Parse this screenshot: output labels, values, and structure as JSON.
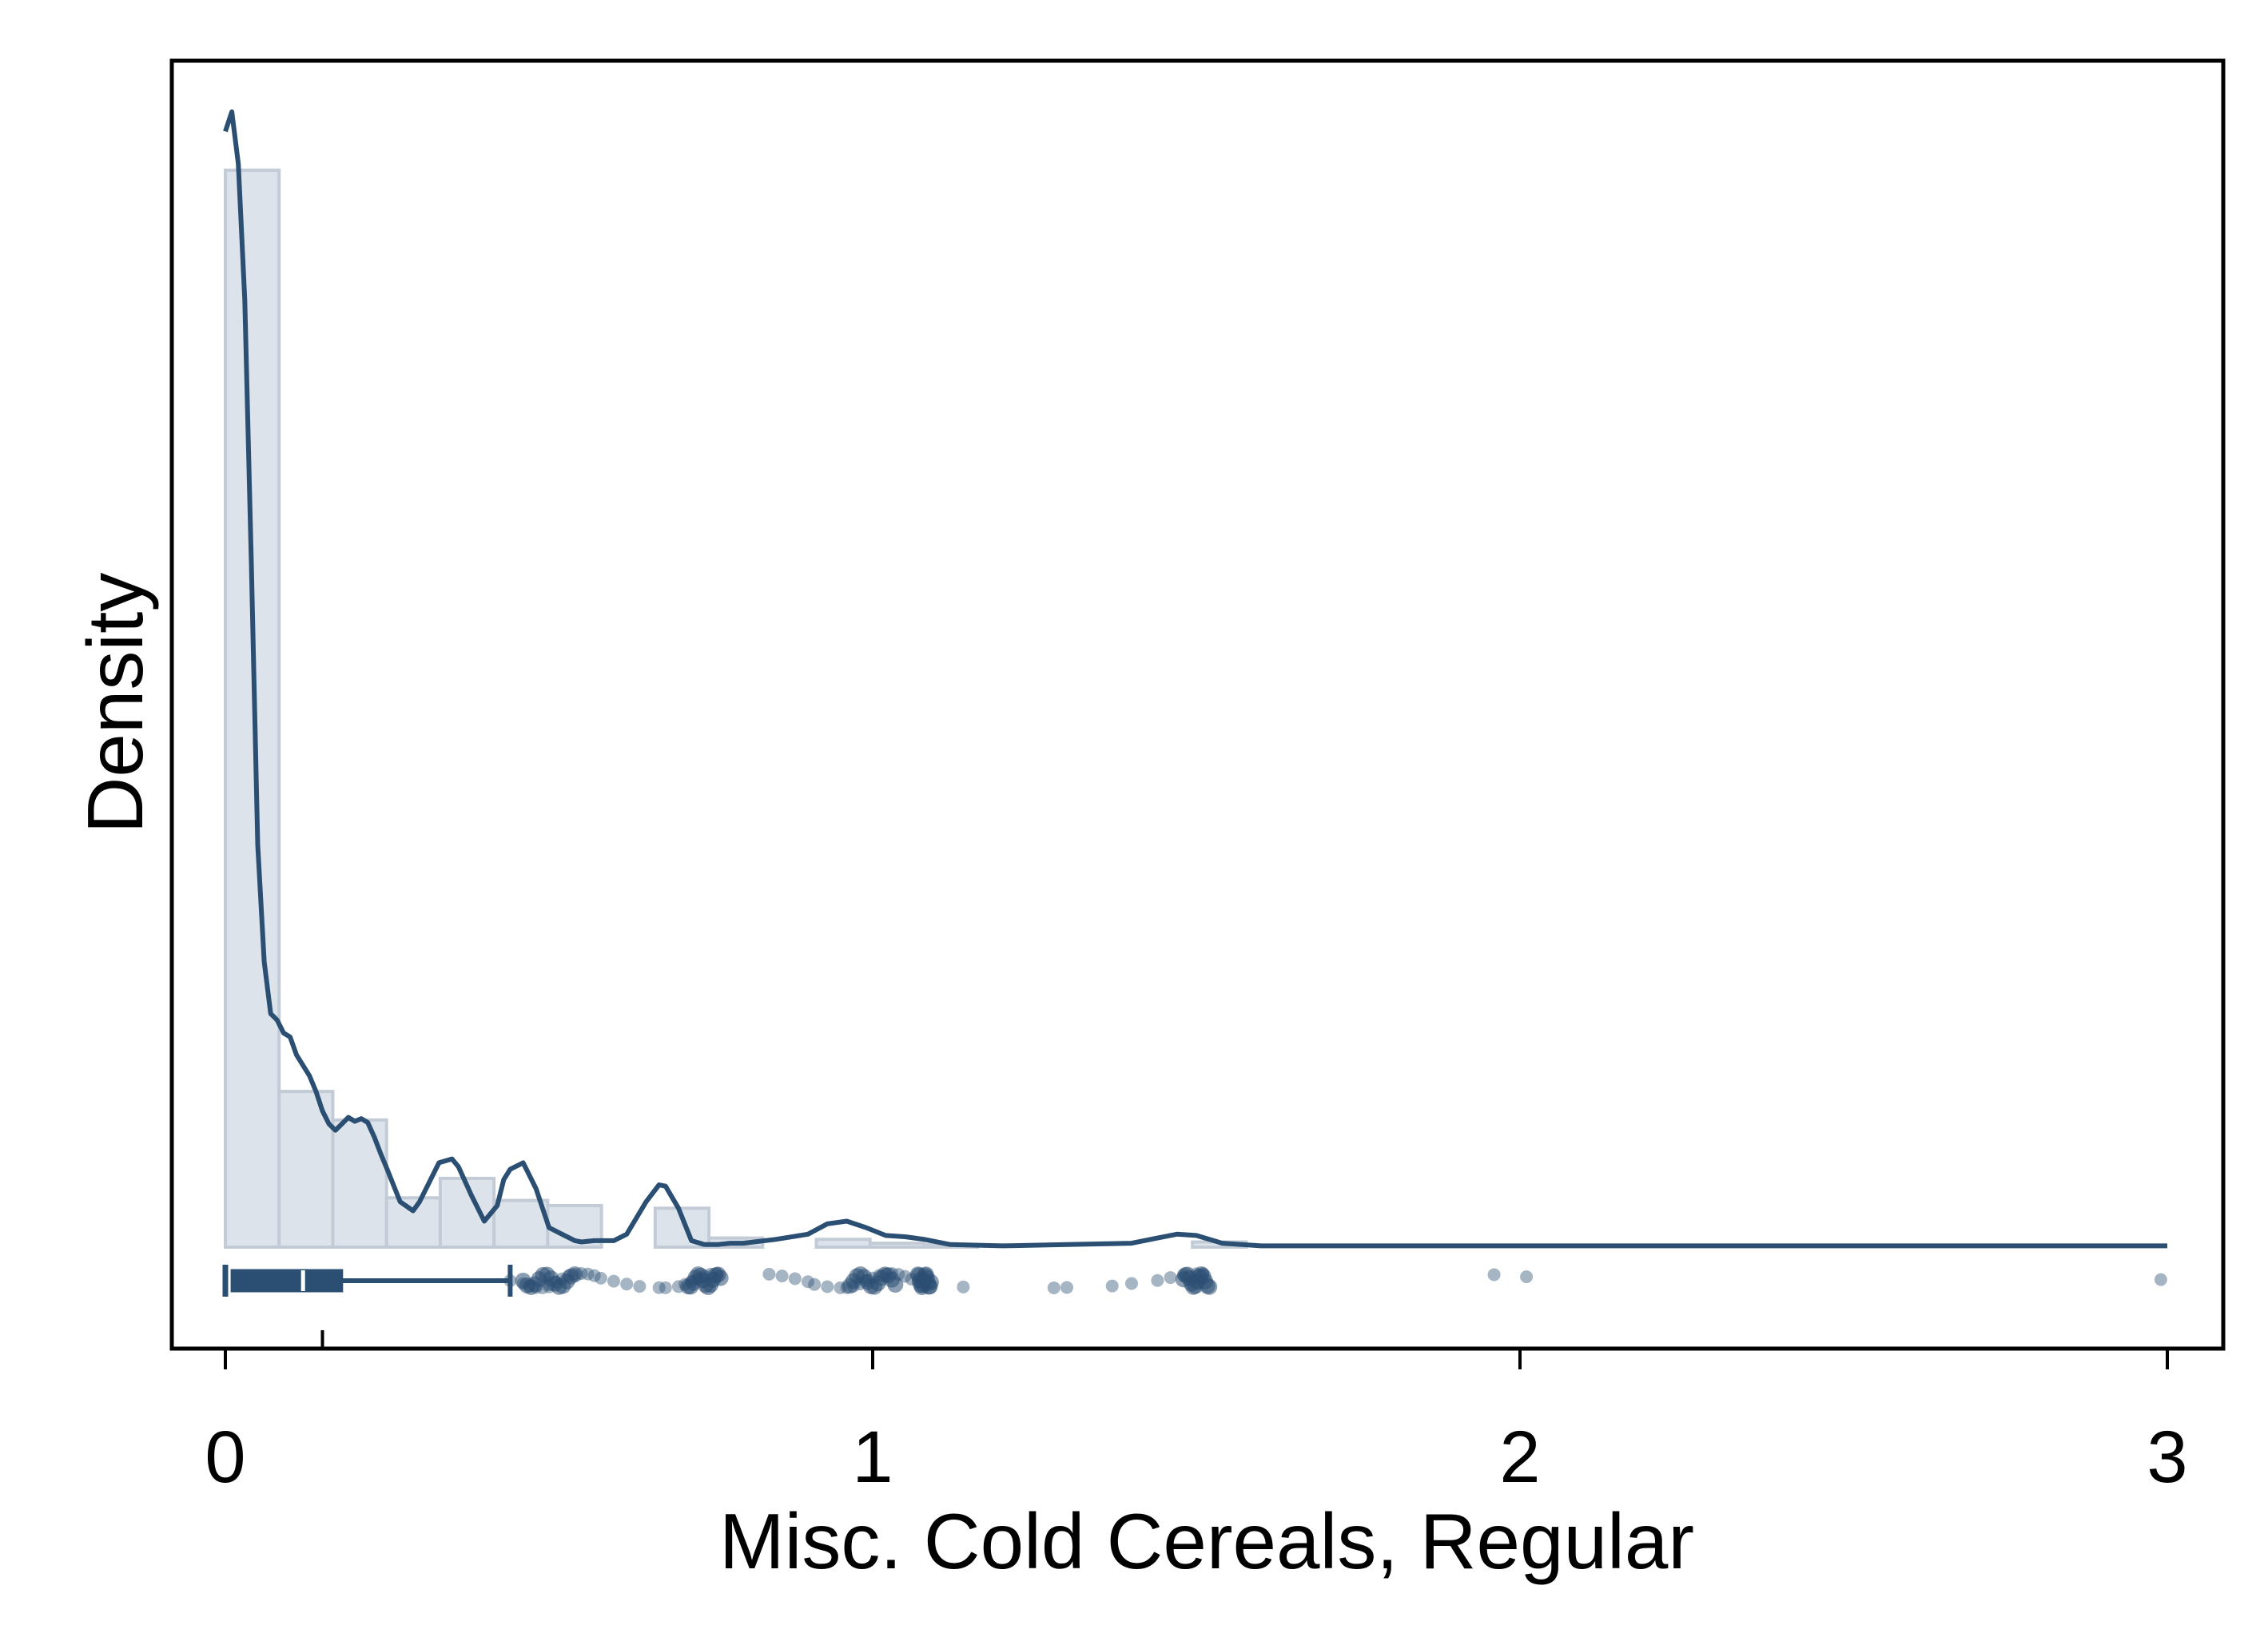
{
  "chart_data": {
    "type": "histogram",
    "title": "",
    "xlabel": "Misc. Cold Cereals, Regular",
    "ylabel": "Density",
    "xlim": [
      -0.08,
      3.08
    ],
    "ylim": [
      -0.85,
      9.0
    ],
    "x_ticks": [
      0,
      1,
      2,
      3
    ],
    "x_tick_labels": [
      "0",
      "1",
      "2",
      "3"
    ],
    "y_ticks_shown": false,
    "grid": false,
    "legend": "none",
    "colors": {
      "bar_fill": "#dce3ea",
      "bar_stroke": "#c3ccd6",
      "line": "#2b4f73",
      "points": "#2b4f73",
      "frame": "#000000"
    },
    "histogram": {
      "bin_width": 0.083,
      "bins": [
        {
          "x0": 0.0,
          "density": 8.3
        },
        {
          "x0": 0.083,
          "density": 1.2
        },
        {
          "x0": 0.166,
          "density": 0.98
        },
        {
          "x0": 0.249,
          "density": 0.38
        },
        {
          "x0": 0.332,
          "density": 0.53
        },
        {
          "x0": 0.415,
          "density": 0.36
        },
        {
          "x0": 0.498,
          "density": 0.32
        },
        {
          "x0": 0.664,
          "density": 0.3
        },
        {
          "x0": 0.747,
          "density": 0.07
        },
        {
          "x0": 0.913,
          "density": 0.06
        },
        {
          "x0": 0.996,
          "density": 0.03
        },
        {
          "x0": 1.079,
          "density": 0.02
        },
        {
          "x0": 1.494,
          "density": 0.04
        }
      ]
    },
    "density_curve": {
      "x": [
        0.0,
        0.01,
        0.02,
        0.03,
        0.04,
        0.05,
        0.06,
        0.07,
        0.08,
        0.09,
        0.1,
        0.11,
        0.12,
        0.13,
        0.14,
        0.15,
        0.16,
        0.17,
        0.18,
        0.19,
        0.2,
        0.21,
        0.22,
        0.23,
        0.24,
        0.25,
        0.27,
        0.29,
        0.3,
        0.31,
        0.33,
        0.35,
        0.36,
        0.38,
        0.4,
        0.42,
        0.43,
        0.44,
        0.46,
        0.48,
        0.5,
        0.52,
        0.54,
        0.55,
        0.57,
        0.6,
        0.62,
        0.65,
        0.67,
        0.68,
        0.7,
        0.72,
        0.74,
        0.76,
        0.78,
        0.8,
        0.85,
        0.9,
        0.93,
        0.96,
        0.99,
        1.02,
        1.05,
        1.08,
        1.12,
        1.2,
        1.3,
        1.4,
        1.44,
        1.47,
        1.5,
        1.54,
        1.6,
        1.8,
        2.0,
        2.2,
        2.5,
        2.8,
        3.0
      ],
      "y": [
        8.6,
        8.75,
        8.35,
        7.3,
        5.3,
        3.1,
        2.2,
        1.8,
        1.75,
        1.65,
        1.62,
        1.48,
        1.4,
        1.32,
        1.2,
        1.05,
        0.95,
        0.9,
        0.95,
        1.0,
        0.97,
        0.99,
        0.96,
        0.85,
        0.72,
        0.6,
        0.35,
        0.28,
        0.35,
        0.45,
        0.65,
        0.68,
        0.62,
        0.4,
        0.2,
        0.32,
        0.52,
        0.6,
        0.65,
        0.45,
        0.15,
        0.1,
        0.05,
        0.04,
        0.05,
        0.05,
        0.1,
        0.35,
        0.48,
        0.47,
        0.3,
        0.05,
        0.02,
        0.02,
        0.03,
        0.03,
        0.06,
        0.1,
        0.18,
        0.2,
        0.15,
        0.09,
        0.08,
        0.06,
        0.02,
        0.01,
        0.02,
        0.03,
        0.07,
        0.1,
        0.09,
        0.03,
        0.01,
        0.01,
        0.01,
        0.01,
        0.01,
        0.01,
        0.01
      ]
    },
    "boxplot": {
      "whisker_low": 0.0,
      "q1": 0.01,
      "median": 0.12,
      "q3": 0.18,
      "whisker_high": 0.44,
      "mean": 0.15
    },
    "outliers": [
      0.44,
      0.46,
      0.47,
      0.48,
      0.49,
      0.5,
      0.5,
      0.51,
      0.52,
      0.53,
      0.54,
      0.55,
      0.56,
      0.57,
      0.58,
      0.6,
      0.62,
      0.64,
      0.67,
      0.68,
      0.7,
      0.71,
      0.72,
      0.73,
      0.74,
      0.75,
      0.76,
      0.84,
      0.86,
      0.88,
      0.9,
      0.91,
      0.93,
      0.95,
      0.96,
      0.97,
      0.98,
      0.99,
      1.0,
      1.01,
      1.02,
      1.03,
      1.04,
      1.05,
      1.06,
      1.07,
      1.08,
      1.14,
      1.28,
      1.3,
      1.37,
      1.4,
      1.44,
      1.46,
      1.48,
      1.5,
      1.51,
      1.96,
      2.01,
      2.99
    ]
  }
}
